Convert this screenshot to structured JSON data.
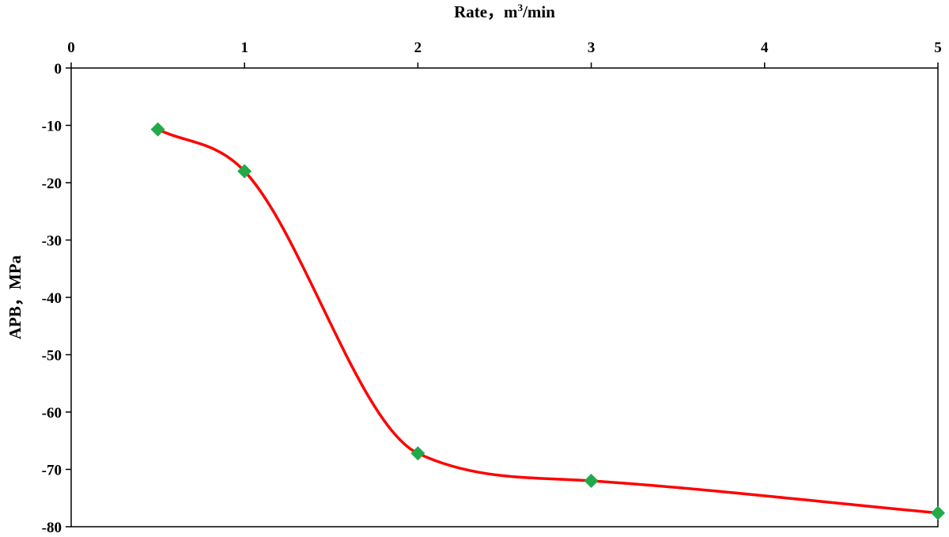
{
  "chart_data": {
    "type": "line",
    "title": "",
    "xlabel_main": "Rate，m",
    "xlabel_sup": "3",
    "xlabel_tail": "/min",
    "ylabel": "APB，MPa",
    "xlim": [
      0,
      5
    ],
    "ylim": [
      -80,
      0
    ],
    "xticks": [
      0,
      1,
      2,
      3,
      4,
      5
    ],
    "yticks": [
      0,
      -10,
      -20,
      -30,
      -40,
      -50,
      -60,
      -70,
      -80
    ],
    "x_axis_position": "top",
    "grid": false,
    "legend": "none",
    "series": [
      {
        "x": [
          0.5,
          1,
          2,
          3,
          5
        ],
        "y": [
          -10.7,
          -18,
          -67.2,
          -72,
          -77.6
        ],
        "line_color": "#ff0000",
        "marker_color": "#22a94a",
        "marker": "diamond",
        "smooth": true
      }
    ]
  }
}
